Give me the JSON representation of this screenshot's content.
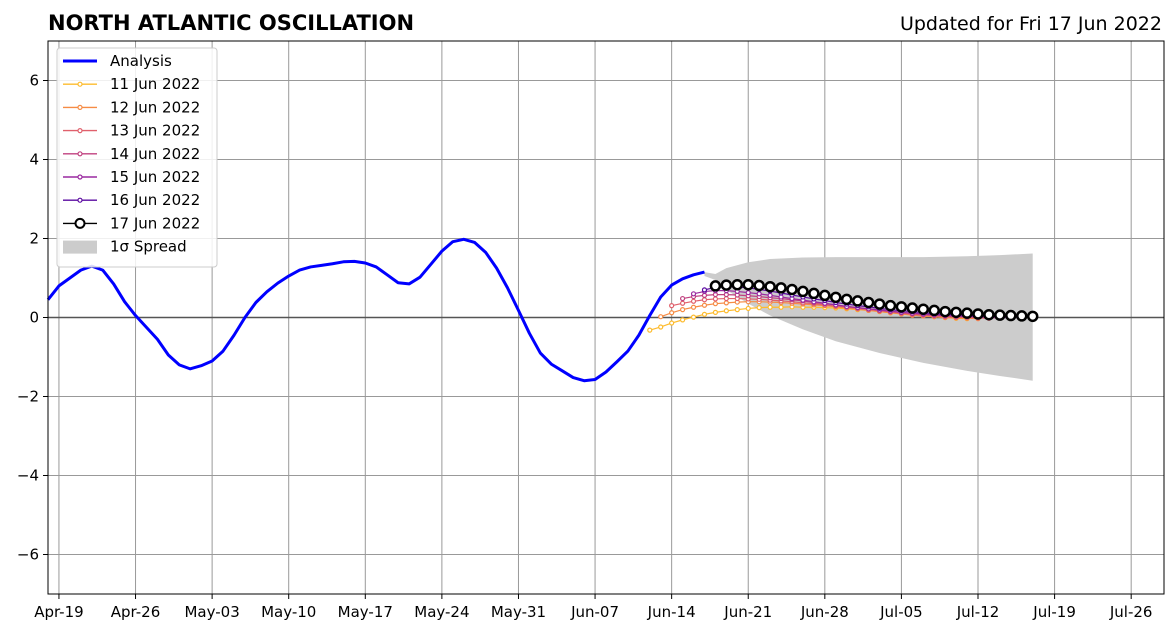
{
  "header": {
    "title": "NORTH ATLANTIC OSCILLATION",
    "updated": "Updated for Fri 17 Jun 2022"
  },
  "chart_data": {
    "type": "line",
    "title": "NORTH ATLANTIC OSCILLATION",
    "xlabel": "",
    "ylabel": "",
    "xlim": [
      "2022-04-18",
      "2022-07-29"
    ],
    "ylim": [
      -7,
      7
    ],
    "grid": true,
    "legend_position": "top-left",
    "x_tick_labels": [
      "Apr-19",
      "Apr-26",
      "May-03",
      "May-10",
      "May-17",
      "May-24",
      "May-31",
      "Jun-07",
      "Jun-14",
      "Jun-21",
      "Jun-28",
      "Jul-05",
      "Jul-12",
      "Jul-19",
      "Jul-26"
    ],
    "x_tick_dates": [
      "2022-04-19",
      "2022-04-26",
      "2022-05-03",
      "2022-05-10",
      "2022-05-17",
      "2022-05-24",
      "2022-05-31",
      "2022-06-07",
      "2022-06-14",
      "2022-06-21",
      "2022-06-28",
      "2022-07-05",
      "2022-07-12",
      "2022-07-19",
      "2022-07-26"
    ],
    "y_ticks": [
      -6,
      -4,
      -2,
      0,
      2,
      4,
      6
    ],
    "y_tick_labels": [
      "−6",
      "−4",
      "−2",
      "0",
      "2",
      "4",
      "6"
    ],
    "analysis": {
      "name": "Analysis",
      "color": "#0000ff",
      "x": [
        "2022-04-18",
        "2022-04-19",
        "2022-04-20",
        "2022-04-21",
        "2022-04-22",
        "2022-04-23",
        "2022-04-24",
        "2022-04-25",
        "2022-04-26",
        "2022-04-27",
        "2022-04-28",
        "2022-04-29",
        "2022-04-30",
        "2022-05-01",
        "2022-05-02",
        "2022-05-03",
        "2022-05-04",
        "2022-05-05",
        "2022-05-06",
        "2022-05-07",
        "2022-05-08",
        "2022-05-09",
        "2022-05-10",
        "2022-05-11",
        "2022-05-12",
        "2022-05-13",
        "2022-05-14",
        "2022-05-15",
        "2022-05-16",
        "2022-05-17",
        "2022-05-18",
        "2022-05-19",
        "2022-05-20",
        "2022-05-21",
        "2022-05-22",
        "2022-05-23",
        "2022-05-24",
        "2022-05-25",
        "2022-05-26",
        "2022-05-27",
        "2022-05-28",
        "2022-05-29",
        "2022-05-30",
        "2022-05-31",
        "2022-06-01",
        "2022-06-02",
        "2022-06-03",
        "2022-06-04",
        "2022-06-05",
        "2022-06-06",
        "2022-06-07",
        "2022-06-08",
        "2022-06-09",
        "2022-06-10",
        "2022-06-11",
        "2022-06-12",
        "2022-06-13",
        "2022-06-14",
        "2022-06-15",
        "2022-06-16",
        "2022-06-17"
      ],
      "y": [
        0.45,
        0.8,
        1.0,
        1.2,
        1.3,
        1.2,
        0.85,
        0.4,
        0.05,
        -0.25,
        -0.55,
        -0.95,
        -1.2,
        -1.3,
        -1.22,
        -1.1,
        -0.85,
        -0.45,
        0.0,
        0.38,
        0.65,
        0.87,
        1.05,
        1.2,
        1.28,
        1.32,
        1.36,
        1.41,
        1.42,
        1.38,
        1.28,
        1.08,
        0.88,
        0.85,
        1.02,
        1.35,
        1.68,
        1.92,
        1.98,
        1.9,
        1.65,
        1.25,
        0.75,
        0.18,
        -0.4,
        -0.9,
        -1.18,
        -1.35,
        -1.52,
        -1.6,
        -1.57,
        -1.38,
        -1.12,
        -0.85,
        -0.45,
        0.05,
        0.52,
        0.82,
        0.98,
        1.08,
        1.15
      ]
    },
    "forecasts": [
      {
        "name": "11 Jun 2022",
        "color": "#fdbb2d",
        "start": "2022-06-12",
        "y": [
          -0.32,
          -0.24,
          -0.14,
          -0.06,
          0.01,
          0.08,
          0.13,
          0.17,
          0.2,
          0.23,
          0.25,
          0.26,
          0.26,
          0.27,
          0.26,
          0.26,
          0.25,
          0.24,
          0.22,
          0.2,
          0.18,
          0.15,
          0.12,
          0.09,
          0.06,
          0.04,
          0.02,
          0.0,
          -0.02,
          -0.03
        ]
      },
      {
        "name": "12 Jun 2022",
        "color": "#f68c45",
        "start": "2022-06-13",
        "y": [
          0.02,
          0.12,
          0.2,
          0.26,
          0.31,
          0.35,
          0.37,
          0.39,
          0.4,
          0.4,
          0.39,
          0.38,
          0.36,
          0.34,
          0.32,
          0.3,
          0.27,
          0.24,
          0.21,
          0.18,
          0.15,
          0.12,
          0.09,
          0.06,
          0.04,
          0.02,
          0.0,
          -0.01,
          -0.02,
          -0.03
        ]
      },
      {
        "name": "13 Jun 2022",
        "color": "#e0606c",
        "start": "2022-06-14",
        "y": [
          0.3,
          0.36,
          0.41,
          0.45,
          0.47,
          0.48,
          0.48,
          0.47,
          0.46,
          0.44,
          0.42,
          0.4,
          0.37,
          0.35,
          0.32,
          0.29,
          0.26,
          0.23,
          0.2,
          0.17,
          0.14,
          0.11,
          0.08,
          0.06,
          0.04,
          0.02,
          0.01,
          0.0,
          -0.01,
          -0.02
        ]
      },
      {
        "name": "14 Jun 2022",
        "color": "#c0407f",
        "start": "2022-06-15",
        "y": [
          0.48,
          0.53,
          0.56,
          0.58,
          0.58,
          0.57,
          0.55,
          0.53,
          0.5,
          0.48,
          0.45,
          0.42,
          0.38,
          0.35,
          0.32,
          0.28,
          0.25,
          0.22,
          0.19,
          0.16,
          0.13,
          0.1,
          0.08,
          0.06,
          0.04,
          0.03,
          0.02,
          0.01,
          0.0,
          -0.01
        ]
      },
      {
        "name": "15 Jun 2022",
        "color": "#9a2aa0",
        "start": "2022-06-16",
        "y": [
          0.6,
          0.66,
          0.68,
          0.68,
          0.66,
          0.63,
          0.6,
          0.56,
          0.52,
          0.48,
          0.44,
          0.4,
          0.36,
          0.32,
          0.28,
          0.25,
          0.22,
          0.19,
          0.16,
          0.13,
          0.11,
          0.09,
          0.07,
          0.05,
          0.04,
          0.03,
          0.02,
          0.01,
          0.0,
          0.0
        ]
      },
      {
        "name": "16 Jun 2022",
        "color": "#5a0aa0",
        "start": "2022-06-17",
        "y": [
          0.7,
          0.76,
          0.78,
          0.77,
          0.75,
          0.71,
          0.67,
          0.62,
          0.57,
          0.52,
          0.47,
          0.43,
          0.38,
          0.34,
          0.3,
          0.27,
          0.23,
          0.2,
          0.17,
          0.15,
          0.12,
          0.1,
          0.08,
          0.07,
          0.05,
          0.04,
          0.03,
          0.02,
          0.01,
          0.01
        ]
      },
      {
        "name": "17 Jun 2022",
        "color": "#000000",
        "start": "2022-06-18",
        "y": [
          0.8,
          0.82,
          0.83,
          0.83,
          0.81,
          0.78,
          0.75,
          0.71,
          0.66,
          0.61,
          0.56,
          0.51,
          0.46,
          0.42,
          0.38,
          0.34,
          0.3,
          0.27,
          0.24,
          0.21,
          0.18,
          0.15,
          0.13,
          0.11,
          0.09,
          0.07,
          0.06,
          0.05,
          0.04,
          0.03
        ]
      }
    ],
    "spread": {
      "name": "1σ Spread",
      "color": "#cccccc",
      "x": [
        "2022-06-17",
        "2022-06-18",
        "2022-06-19",
        "2022-06-21",
        "2022-06-23",
        "2022-06-26",
        "2022-06-29",
        "2022-07-03",
        "2022-07-07",
        "2022-07-11",
        "2022-07-14",
        "2022-07-17"
      ],
      "upper": [
        1.15,
        1.1,
        1.25,
        1.4,
        1.48,
        1.52,
        1.53,
        1.53,
        1.53,
        1.55,
        1.58,
        1.62
      ],
      "lower": [
        1.05,
        0.95,
        0.7,
        0.35,
        0.05,
        -0.3,
        -0.6,
        -0.9,
        -1.15,
        -1.35,
        -1.48,
        -1.6
      ]
    }
  }
}
